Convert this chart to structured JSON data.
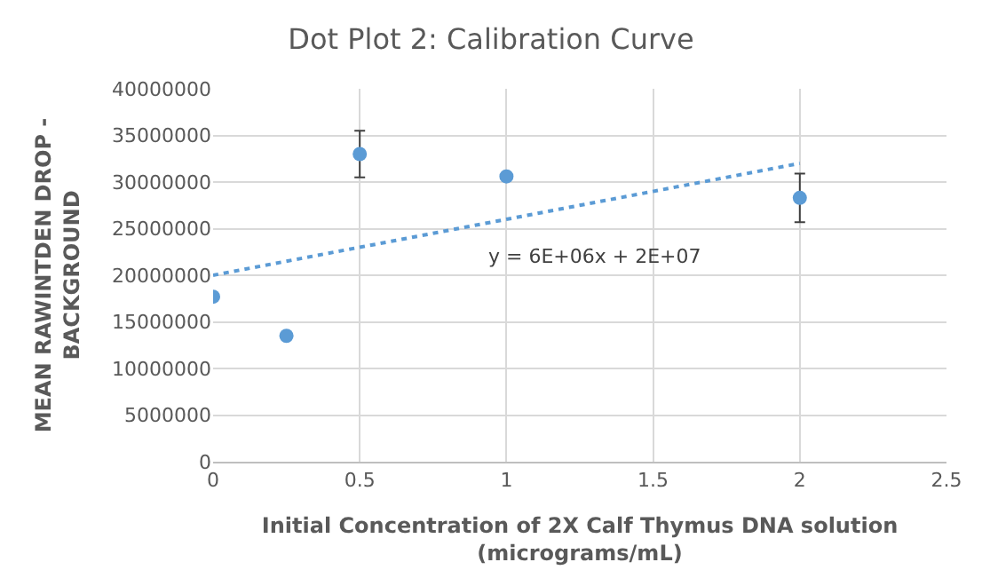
{
  "chart_data": {
    "type": "scatter",
    "title": "Dot Plot 2: Calibration Curve",
    "xlabel": "Initial Concentration of 2X Calf Thymus DNA solution\n(micrograms/mL)",
    "ylabel": "MEAN RAWINTDEN DROP -\nBACKGROUND",
    "series": [
      {
        "color": "#5b9bd5",
        "x": [
          0,
          0.25,
          0.5,
          1,
          2
        ],
        "values": [
          17700000,
          13500000,
          33000000,
          30600000,
          28300000
        ],
        "errors": [
          null,
          null,
          2500000,
          null,
          2600000
        ],
        "marker": "circle"
      },
      {
        "type": "line",
        "color": "#5b9bd5",
        "x": [
          0,
          2
        ],
        "values": [
          20000000,
          32000000
        ],
        "line_style": "dotted"
      }
    ],
    "annotations": [
      "y = 6E+06x + 2E+07"
    ],
    "xlim": [
      0,
      2.5
    ],
    "xticks": [
      0,
      0.5,
      1,
      1.5,
      2,
      2.5
    ],
    "ylim": [
      0,
      40000000
    ],
    "yticks": [
      0,
      5000000,
      10000000,
      15000000,
      20000000,
      25000000,
      30000000,
      35000000,
      40000000
    ],
    "grid": true
  }
}
